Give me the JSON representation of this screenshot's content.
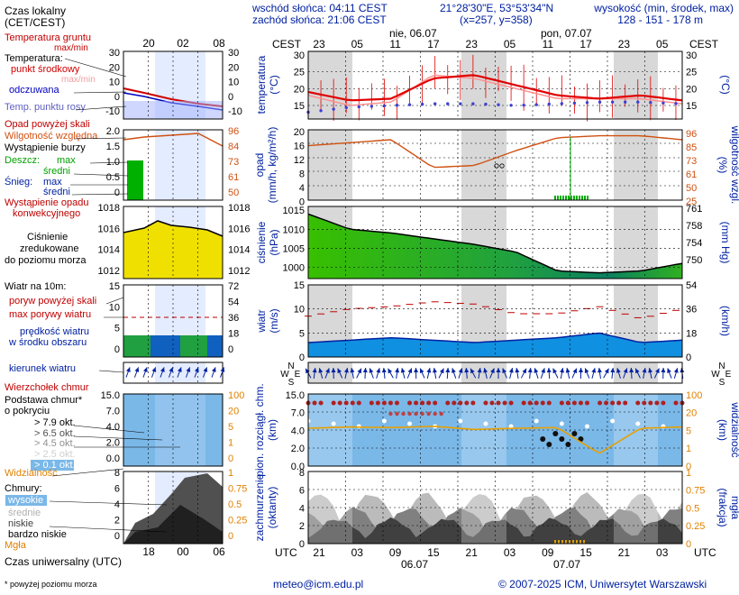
{
  "header": {
    "sunrise": "wschód słońca: 04:11 CEST",
    "sunset": "zachód słońca: 21:06 CEST",
    "coords": "21°28'30\"E, 53°53'34\"N",
    "grid": "(x=257,  y=358)",
    "elev_title": "wysokość (min, środek, max)",
    "elev_values": "128 - 151 - 178 m"
  },
  "time_axis": {
    "cest_label": "CEST",
    "utc_label": "UTC",
    "cest_hours": [
      "23",
      "05",
      "11",
      "17",
      "23",
      "05",
      "11",
      "17",
      "23",
      "05"
    ],
    "utc_hours": [
      "21",
      "03",
      "09",
      "15",
      "21",
      "03",
      "09",
      "15",
      "21",
      "03"
    ],
    "day1_top": "nie, 06.07",
    "day2_top": "pon, 07.07",
    "day1_bottom": "06.07",
    "day2_bottom": "07.07"
  },
  "legend": {
    "local_time": "Czas lokalny",
    "local_time_sub": "(CET/CEST)",
    "local_hours": [
      "20",
      "02",
      "08"
    ],
    "soil_temp": "Temperatura gruntu",
    "soil_minmax": "max/min",
    "temp_title": "Temperatura:",
    "midpoint": "punkt środkowy",
    "maxmin": "max/min",
    "perceived": "odczuwana",
    "dewpoint": "Temp. punktu rosy",
    "precip_above": "Opad powyżej skali",
    "humidity": "Wilgotność względna",
    "storm": "Wystąpienie burzy",
    "rain": "Deszcz:",
    "max": "max",
    "mean": "średni",
    "snow": "Śnieg:",
    "conv_precip": "Wystąpienie opadu",
    "conv_precip2": "konwekcyjnego",
    "pressure1": "Ciśnienie",
    "pressure2": "zredukowane",
    "pressure3": "do poziomu morza",
    "wind_title": "Wiatr na 10m:",
    "gust_above": "poryw powyżej skali",
    "gust_max": "max porywy wiatru",
    "wind_mean": "prędkość wiatru",
    "wind_mean2": "w środku obszaru",
    "wind_dir": "kierunek wiatru",
    "windchill": "Wierzchołek chmur",
    "cloudbase": "Podstawa chmur*",
    "cloudbase2": "o pokryciu",
    "okt": [
      "> 7.9 okt.",
      "> 6.5 okt.",
      "> 4.5 okt.",
      "> 2.5 okt.",
      "> 0.1 okt."
    ],
    "visibility": "Widzialność",
    "clouds": "Chmury:",
    "high": "wysokie",
    "mid": "średnie",
    "low": "niskie",
    "vlow": "bardzo niskie",
    "fog": "Mgła",
    "utc_title": "Czas uniwersalny (UTC)",
    "utc_hours": [
      "18",
      "00",
      "06"
    ],
    "footnote": "* powyżej poziomu morza"
  },
  "panels": {
    "temp": {
      "left": "temperatura",
      "left2": "(°C)",
      "right": "(°C)",
      "ticks": [
        "30",
        "25",
        "20",
        "15"
      ]
    },
    "precip": {
      "left": "opad",
      "left2": "(mm/h, kg/m²/h)",
      "right": "wilgotność wzgl.",
      "right2": "(%)",
      "ticks_l": [
        "20",
        "16",
        "12",
        "8",
        "4",
        "0"
      ],
      "ticks_r": [
        "96",
        "85",
        "73",
        "61",
        "50",
        "25"
      ]
    },
    "pres": {
      "left": "ciśnienie",
      "left2": "(hPa)",
      "right": "(mm Hg)",
      "ticks_l": [
        "1015",
        "1010",
        "1005",
        "1000"
      ],
      "ticks_r": [
        "761",
        "758",
        "754",
        "750"
      ]
    },
    "wind": {
      "left": "wiatr",
      "left2": "(m/s)",
      "right": "(km/h)",
      "ticks_l": [
        "15",
        "10",
        "5",
        "0"
      ],
      "ticks_r": [
        "54",
        "36",
        "18",
        "0"
      ]
    },
    "dir": {
      "compass_n": "N",
      "compass_w": "W",
      "compass_e": "E",
      "compass_s": "S"
    },
    "cloud": {
      "left": "pion. rozciągł. chm.",
      "left2": "(km)",
      "right": "(km)",
      "right2": "widzialność",
      "ticks_l": [
        "15.0",
        "7.0",
        "4.0",
        "2.0",
        "0.0"
      ],
      "ticks_r": [
        "100",
        "20",
        "5",
        "1",
        "0"
      ]
    },
    "cover": {
      "left": "zachmurzenie",
      "left2": "(oktanty)",
      "right": "(frakcja)",
      "right2": "mgła",
      "ticks_l": [
        "8",
        "6",
        "4",
        "2",
        "0"
      ],
      "ticks_r": [
        "1",
        "0.75",
        "0.5",
        "0.25",
        "0"
      ]
    }
  },
  "legend_ticks": {
    "temp_l": [
      "30",
      "20",
      "10",
      "0",
      "-10"
    ],
    "temp_r": [
      "30",
      "20",
      "10",
      "0",
      "-10"
    ],
    "precip_l": [
      "2.0",
      "1.5",
      "1.0",
      "0.5",
      "0"
    ],
    "precip_r": [
      "96",
      "84",
      "73",
      "61",
      "50"
    ],
    "pres_l": [
      "1018",
      "1016",
      "1014",
      "1012"
    ],
    "pres_r": [
      "1018",
      "1016",
      "1014",
      "1012"
    ],
    "wind_l": [
      "15",
      "10",
      "5",
      "0"
    ],
    "wind_r": [
      "72",
      "54",
      "36",
      "18",
      "0"
    ],
    "cloud_l": [
      "15.0",
      "7.0",
      "4.0",
      "2.0",
      "0.0"
    ],
    "cloud_r": [
      "100",
      "20",
      "5",
      "1",
      "0"
    ],
    "cover_l": [
      "8",
      "6",
      "4",
      "2",
      "0"
    ],
    "cover_r": [
      "1",
      "0.75",
      "0.5",
      "0.25",
      "0"
    ]
  },
  "footer": {
    "email": "meteo@icm.edu.pl",
    "copyright": "© 2007-2025 ICM, Uniwersytet Warszawski"
  },
  "colors": {
    "temp": "#e00000",
    "dew": "#4040d0",
    "humidity": "#d05010",
    "pressure_fill": "#40d000",
    "wind_fill": "#1090e0",
    "night": "#d8d8d8",
    "cloud_bg": "#7ab8e8",
    "cover_bg": "#ffffff"
  },
  "chart_data": [
    {
      "type": "line",
      "title": "temperatura",
      "ylabel": "(°C)",
      "ylim": [
        11,
        31
      ],
      "x": [
        "21",
        "03",
        "09",
        "15",
        "21",
        "03",
        "09",
        "15",
        "21",
        "03"
      ],
      "series": [
        {
          "name": "punkt środkowy",
          "values": [
            19,
            16.5,
            17,
            23,
            24,
            21,
            18,
            17,
            18,
            16.5
          ]
        },
        {
          "name": "odczuwana",
          "values": [
            18,
            15,
            16,
            24,
            23,
            20,
            17,
            17,
            17,
            15.5
          ]
        },
        {
          "name": "Temp. punktu rosy",
          "values": [
            13,
            14.5,
            15,
            15.5,
            15.5,
            15,
            15.5,
            16,
            16,
            15.5
          ]
        }
      ]
    },
    {
      "type": "line",
      "title": "wilgotność wzgl.",
      "ylabel": "(%)",
      "ylim": [
        25,
        96
      ],
      "x": [
        "21",
        "03",
        "09",
        "15",
        "21",
        "03",
        "09",
        "15",
        "21",
        "03"
      ],
      "series": [
        {
          "name": "Wilgotność względna",
          "values": [
            80,
            83,
            86,
            58,
            60,
            75,
            88,
            90,
            90,
            86
          ]
        }
      ]
    },
    {
      "type": "area",
      "title": "ciśnienie",
      "ylabel": "(hPa)",
      "ylim": [
        997,
        1016
      ],
      "x": [
        "21",
        "03",
        "09",
        "15",
        "21",
        "03",
        "09",
        "15",
        "21",
        "03"
      ],
      "values": [
        1014,
        1010,
        1009,
        1007.5,
        1006,
        1004,
        999,
        998.5,
        999,
        1001
      ]
    },
    {
      "type": "area",
      "title": "wiatr",
      "ylabel": "(m/s)",
      "ylim": [
        0,
        15
      ],
      "x": [
        "21",
        "03",
        "09",
        "15",
        "21",
        "03",
        "09",
        "15",
        "21",
        "03"
      ],
      "series": [
        {
          "name": "prędkość wiatru",
          "values": [
            3,
            3.5,
            4,
            3.5,
            3,
            3.5,
            4,
            5,
            3,
            3.5
          ]
        },
        {
          "name": "max porywy wiatru",
          "values": [
            8.5,
            10,
            10.5,
            11.5,
            11,
            9,
            9,
            10.5,
            8,
            10
          ]
        }
      ]
    }
  ]
}
